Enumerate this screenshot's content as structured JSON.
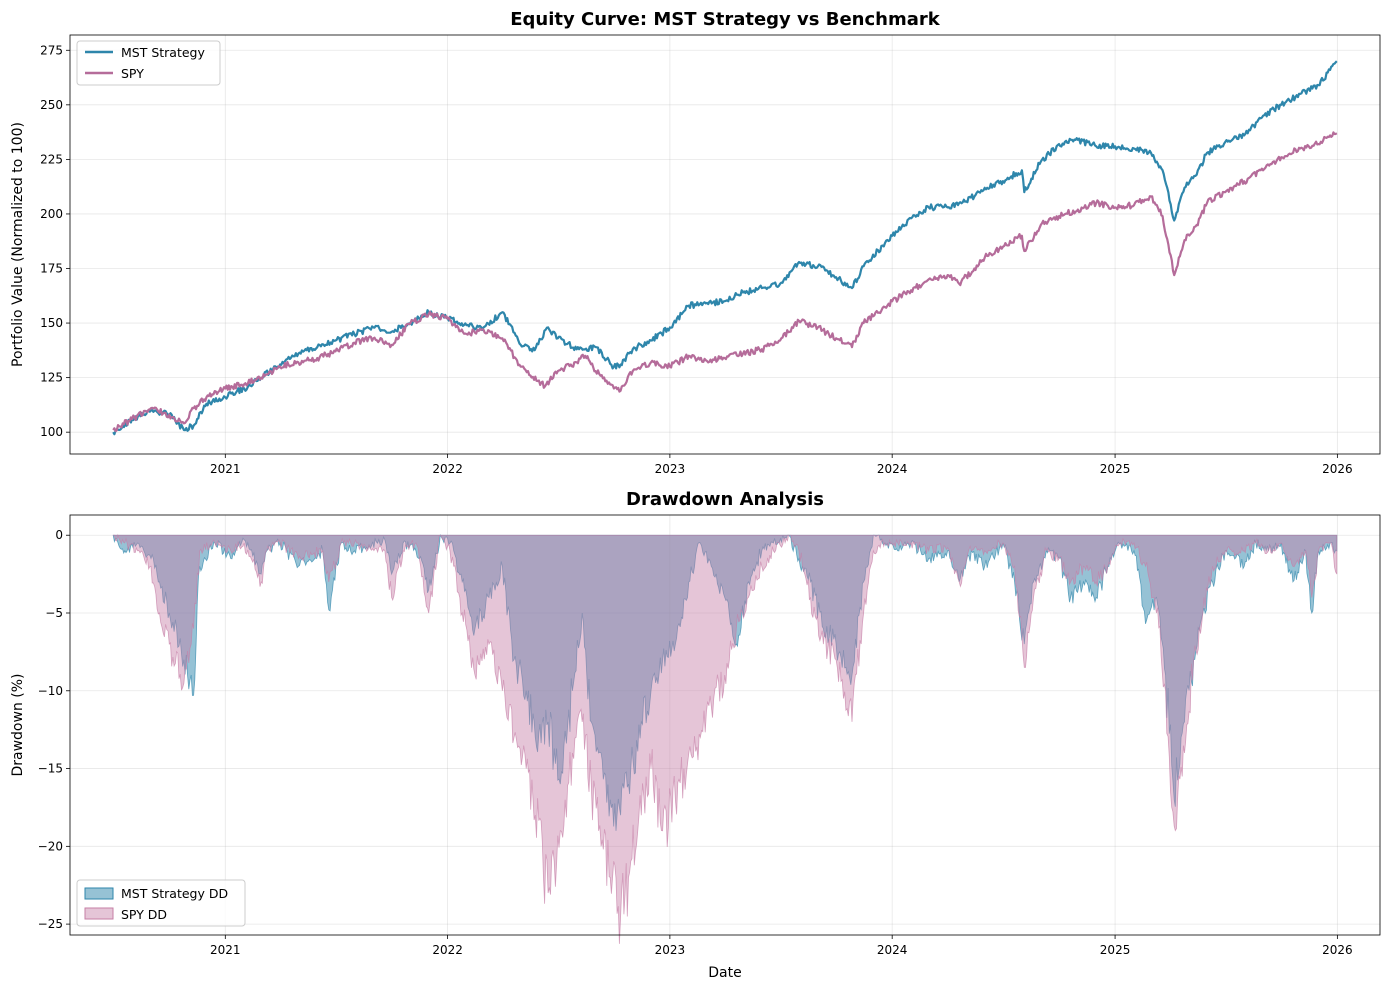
{
  "chart_data": [
    {
      "type": "line",
      "title": "Equity Curve: MST Strategy vs Benchmark",
      "xlabel": "",
      "ylabel": "Portfolio Value (Normalized to 100)",
      "xlim": [
        "2020-04-21",
        "2026-03-12"
      ],
      "ylim": [
        90,
        282
      ],
      "x_ticks": [
        "2021",
        "2022",
        "2023",
        "2024",
        "2025",
        "2026"
      ],
      "y_ticks": [
        100,
        125,
        150,
        175,
        200,
        225,
        250,
        275
      ],
      "grid": true,
      "legend_position": "upper left",
      "series": [
        {
          "name": "MST Strategy",
          "color": "#2e86ab",
          "x": [
            "2020-07-01",
            "2020-08-01",
            "2020-09-01",
            "2020-10-01",
            "2020-10-25",
            "2020-11-10",
            "2020-12-01",
            "2021-01-01",
            "2021-02-01",
            "2021-03-01",
            "2021-04-01",
            "2021-05-01",
            "2021-06-01",
            "2021-07-01",
            "2021-08-01",
            "2021-09-01",
            "2021-10-01",
            "2021-11-01",
            "2021-12-01",
            "2022-01-01",
            "2022-02-01",
            "2022-03-01",
            "2022-04-01",
            "2022-05-01",
            "2022-05-20",
            "2022-06-15",
            "2022-07-01",
            "2022-08-01",
            "2022-09-01",
            "2022-10-01",
            "2022-10-12",
            "2022-11-01",
            "2022-12-01",
            "2023-01-01",
            "2023-02-01",
            "2023-03-01",
            "2023-04-01",
            "2023-05-01",
            "2023-06-01",
            "2023-07-01",
            "2023-08-01",
            "2023-09-01",
            "2023-10-01",
            "2023-10-27",
            "2023-11-15",
            "2024-01-01",
            "2024-02-01",
            "2024-03-01",
            "2024-04-01",
            "2024-04-20",
            "2024-05-15",
            "2024-06-01",
            "2024-07-01",
            "2024-08-01",
            "2024-08-05",
            "2024-09-01",
            "2024-10-01",
            "2024-11-01",
            "2024-12-01",
            "2025-01-01",
            "2025-02-01",
            "2025-03-01",
            "2025-03-20",
            "2025-04-08",
            "2025-04-25",
            "2025-05-15",
            "2025-06-01",
            "2025-07-01",
            "2025-08-01",
            "2025-09-01",
            "2025-10-01",
            "2025-11-01",
            "2025-12-01",
            "2025-12-20",
            "2025-12-31"
          ],
          "values": [
            100,
            106,
            110,
            108,
            101,
            103,
            113,
            116,
            120,
            125,
            131,
            136,
            139,
            142,
            145,
            148,
            146,
            150,
            155,
            152,
            149,
            148,
            155,
            140,
            137,
            148,
            143,
            138,
            139,
            130,
            131,
            138,
            142,
            148,
            158,
            159,
            160,
            164,
            166,
            168,
            178,
            176,
            171,
            166,
            176,
            190,
            198,
            203,
            203,
            205,
            208,
            212,
            215,
            220,
            210,
            224,
            232,
            234,
            231,
            231,
            230,
            228,
            220,
            197,
            212,
            218,
            228,
            233,
            236,
            245,
            250,
            255,
            259,
            266,
            270
          ]
        },
        {
          "name": "SPY",
          "color": "#b56c9a",
          "x": [
            "2020-07-01",
            "2020-08-01",
            "2020-09-01",
            "2020-10-01",
            "2020-10-25",
            "2020-11-10",
            "2020-12-01",
            "2021-01-01",
            "2021-02-01",
            "2021-03-01",
            "2021-04-01",
            "2021-05-01",
            "2021-06-01",
            "2021-07-01",
            "2021-08-01",
            "2021-09-01",
            "2021-10-01",
            "2021-11-01",
            "2021-12-01",
            "2022-01-01",
            "2022-02-01",
            "2022-03-01",
            "2022-04-01",
            "2022-05-01",
            "2022-06-10",
            "2022-07-01",
            "2022-08-01",
            "2022-08-15",
            "2022-09-01",
            "2022-10-01",
            "2022-10-12",
            "2022-11-01",
            "2022-12-01",
            "2023-01-01",
            "2023-02-01",
            "2023-03-01",
            "2023-04-01",
            "2023-05-01",
            "2023-06-01",
            "2023-07-01",
            "2023-08-01",
            "2023-09-01",
            "2023-10-01",
            "2023-10-27",
            "2023-11-15",
            "2024-01-01",
            "2024-02-01",
            "2024-03-01",
            "2024-04-01",
            "2024-04-20",
            "2024-05-15",
            "2024-06-01",
            "2024-07-01",
            "2024-08-01",
            "2024-08-05",
            "2024-09-01",
            "2024-10-01",
            "2024-11-01",
            "2024-12-01",
            "2025-01-01",
            "2025-02-01",
            "2025-03-01",
            "2025-03-20",
            "2025-04-08",
            "2025-04-25",
            "2025-05-15",
            "2025-06-01",
            "2025-07-01",
            "2025-08-01",
            "2025-09-01",
            "2025-10-01",
            "2025-11-01",
            "2025-12-01",
            "2025-12-20",
            "2025-12-31"
          ],
          "values": [
            101,
            106,
            111,
            108,
            104,
            111,
            116,
            120,
            122,
            125,
            130,
            132,
            134,
            137,
            141,
            143,
            140,
            150,
            154,
            152,
            145,
            147,
            143,
            130,
            121,
            128,
            132,
            135,
            128,
            120,
            119,
            128,
            132,
            130,
            135,
            133,
            134,
            136,
            138,
            142,
            151,
            148,
            143,
            139,
            150,
            160,
            165,
            170,
            172,
            168,
            175,
            180,
            185,
            190,
            183,
            195,
            199,
            202,
            205,
            203,
            204,
            208,
            199,
            172,
            188,
            195,
            205,
            210,
            215,
            220,
            226,
            230,
            232,
            236,
            237
          ]
        }
      ]
    },
    {
      "type": "area",
      "title": "Drawdown Analysis",
      "xlabel": "Date",
      "ylabel": "Drawdown (%)",
      "xlim": [
        "2020-04-21",
        "2026-03-12"
      ],
      "ylim": [
        -25.7,
        1.3
      ],
      "x_ticks": [
        "2021",
        "2022",
        "2023",
        "2024",
        "2025",
        "2026"
      ],
      "y_ticks": [
        0,
        -5,
        -10,
        -15,
        -20,
        -25
      ],
      "grid": true,
      "legend_position": "lower left",
      "series": [
        {
          "name": "MST Strategy DD",
          "color": "#2e86ab",
          "x": [
            "2020-07-01",
            "2020-07-20",
            "2020-08-10",
            "2020-09-01",
            "2020-09-15",
            "2020-10-01",
            "2020-10-25",
            "2020-11-10",
            "2020-11-20",
            "2020-12-15",
            "2021-01-10",
            "2021-02-01",
            "2021-03-01",
            "2021-03-10",
            "2021-04-01",
            "2021-05-01",
            "2021-06-10",
            "2021-06-20",
            "2021-07-10",
            "2021-08-01",
            "2021-09-20",
            "2021-10-01",
            "2021-10-20",
            "2021-11-10",
            "2021-12-01",
            "2021-12-20",
            "2022-01-05",
            "2022-01-25",
            "2022-02-15",
            "2022-03-10",
            "2022-04-01",
            "2022-04-20",
            "2022-05-10",
            "2022-05-25",
            "2022-06-15",
            "2022-07-05",
            "2022-07-25",
            "2022-08-10",
            "2022-08-25",
            "2022-09-10",
            "2022-09-25",
            "2022-10-12",
            "2022-10-25",
            "2022-11-15",
            "2022-12-01",
            "2022-12-20",
            "2023-01-10",
            "2023-02-01",
            "2023-02-20",
            "2023-03-10",
            "2023-04-01",
            "2023-04-20",
            "2023-05-10",
            "2023-06-01",
            "2023-06-20",
            "2023-07-15",
            "2023-08-01",
            "2023-08-20",
            "2023-09-10",
            "2023-10-01",
            "2023-10-27",
            "2023-11-15",
            "2023-12-01",
            "2023-12-20",
            "2024-01-10",
            "2024-02-01",
            "2024-03-01",
            "2024-04-01",
            "2024-04-20",
            "2024-05-10",
            "2024-06-01",
            "2024-07-01",
            "2024-07-20",
            "2024-08-05",
            "2024-08-20",
            "2024-09-10",
            "2024-10-01",
            "2024-10-20",
            "2024-11-10",
            "2024-12-01",
            "2024-12-20",
            "2025-01-10",
            "2025-02-01",
            "2025-02-20",
            "2025-03-10",
            "2025-03-25",
            "2025-04-08",
            "2025-04-25",
            "2025-05-10",
            "2025-05-25",
            "2025-06-10",
            "2025-07-01",
            "2025-08-01",
            "2025-08-20",
            "2025-09-10",
            "2025-10-01",
            "2025-10-20",
            "2025-11-10",
            "2025-11-20",
            "2025-12-01",
            "2025-12-20",
            "2025-12-31"
          ],
          "values": [
            0,
            -1,
            -0.5,
            -1.5,
            -3,
            -5,
            -8,
            -10.3,
            -2,
            -0.5,
            -1.5,
            -0.3,
            -2.5,
            -1,
            -0.5,
            -2,
            -1,
            -4.8,
            -0.5,
            -1,
            -0.3,
            -2.5,
            -0.5,
            -1,
            -3.5,
            0,
            -0.5,
            -3,
            -6,
            -4,
            -2,
            -8,
            -10,
            -13,
            -12,
            -16,
            -10,
            -5,
            -12,
            -14,
            -17,
            -18,
            -16,
            -12,
            -10,
            -8,
            -7,
            -3,
            -0.5,
            -2,
            -4,
            -7,
            -3,
            -1,
            -0.5,
            0,
            -1.5,
            -3,
            -6,
            -7,
            -9,
            -3,
            0,
            -0.5,
            -1,
            -0.5,
            -1.5,
            -1,
            -3,
            -1,
            -2,
            -0.5,
            -3,
            -7,
            -3,
            -1,
            -1.5,
            -4,
            -3,
            -4,
            -2,
            -0.5,
            -1,
            -5.7,
            -4,
            -9,
            -17,
            -12,
            -8,
            -5,
            -3,
            -1,
            -2,
            -0.5,
            -1,
            -0.5,
            -3,
            -1,
            -5,
            -1,
            -0.5,
            -1
          ]
        },
        {
          "name": "SPY DD",
          "color": "#c67fa6",
          "x": [
            "2020-07-01",
            "2020-07-20",
            "2020-08-10",
            "2020-09-01",
            "2020-09-15",
            "2020-10-01",
            "2020-10-25",
            "2020-11-10",
            "2020-11-20",
            "2020-12-15",
            "2021-01-10",
            "2021-02-01",
            "2021-03-01",
            "2021-03-10",
            "2021-04-01",
            "2021-05-01",
            "2021-06-10",
            "2021-06-20",
            "2021-07-10",
            "2021-08-01",
            "2021-09-20",
            "2021-10-01",
            "2021-10-20",
            "2021-11-10",
            "2021-12-01",
            "2021-12-20",
            "2022-01-05",
            "2022-01-25",
            "2022-02-15",
            "2022-03-10",
            "2022-04-01",
            "2022-04-20",
            "2022-05-10",
            "2022-05-25",
            "2022-06-15",
            "2022-07-05",
            "2022-07-25",
            "2022-08-10",
            "2022-08-25",
            "2022-09-10",
            "2022-09-25",
            "2022-10-12",
            "2022-10-25",
            "2022-11-15",
            "2022-12-01",
            "2022-12-20",
            "2023-01-10",
            "2023-02-01",
            "2023-02-20",
            "2023-03-10",
            "2023-04-01",
            "2023-04-20",
            "2023-05-10",
            "2023-06-01",
            "2023-06-20",
            "2023-07-15",
            "2023-08-01",
            "2023-08-20",
            "2023-09-10",
            "2023-10-01",
            "2023-10-27",
            "2023-11-15",
            "2023-12-01",
            "2023-12-20",
            "2024-01-10",
            "2024-02-01",
            "2024-03-01",
            "2024-04-01",
            "2024-04-20",
            "2024-05-10",
            "2024-06-01",
            "2024-07-01",
            "2024-07-20",
            "2024-08-05",
            "2024-08-20",
            "2024-09-10",
            "2024-10-01",
            "2024-10-20",
            "2024-11-10",
            "2024-12-01",
            "2024-12-20",
            "2025-01-10",
            "2025-02-01",
            "2025-02-20",
            "2025-03-10",
            "2025-03-25",
            "2025-04-08",
            "2025-04-25",
            "2025-05-10",
            "2025-05-25",
            "2025-06-10",
            "2025-07-01",
            "2025-08-01",
            "2025-08-20",
            "2025-09-10",
            "2025-10-01",
            "2025-10-20",
            "2025-11-10",
            "2025-11-20",
            "2025-12-01",
            "2025-12-20",
            "2025-12-31"
          ],
          "values": [
            0,
            -0.5,
            -1,
            -2,
            -5,
            -7,
            -9.5,
            -6,
            -1,
            -0.5,
            -1,
            -0.5,
            -3,
            -1,
            -0.5,
            -1.5,
            -1,
            -3,
            -0.5,
            -0.5,
            -1,
            -4,
            -1,
            -0.5,
            -5,
            0,
            -1,
            -5,
            -9,
            -7,
            -10,
            -13,
            -15,
            -18,
            -23,
            -19,
            -14,
            -12,
            -16,
            -20,
            -22,
            -24.5,
            -22,
            -18,
            -15,
            -19,
            -17,
            -14,
            -13,
            -11,
            -9,
            -6,
            -4,
            -2,
            -1,
            0,
            -1,
            -4,
            -7,
            -8,
            -12,
            -5,
            -1,
            -0.5,
            -0.5,
            -0.5,
            -1,
            -0.8,
            -3,
            -1,
            -1,
            -0.5,
            -2,
            -8.5,
            -4,
            -1,
            -1.5,
            -3,
            -2,
            -3,
            -2,
            -0.5,
            -0.5,
            -2,
            -5,
            -10,
            -18.7,
            -14,
            -8,
            -5,
            -2,
            -1,
            -1,
            -0.5,
            -1,
            -0.5,
            -2,
            -1,
            -4,
            -1,
            -0.5,
            -2.5
          ]
        }
      ]
    }
  ]
}
